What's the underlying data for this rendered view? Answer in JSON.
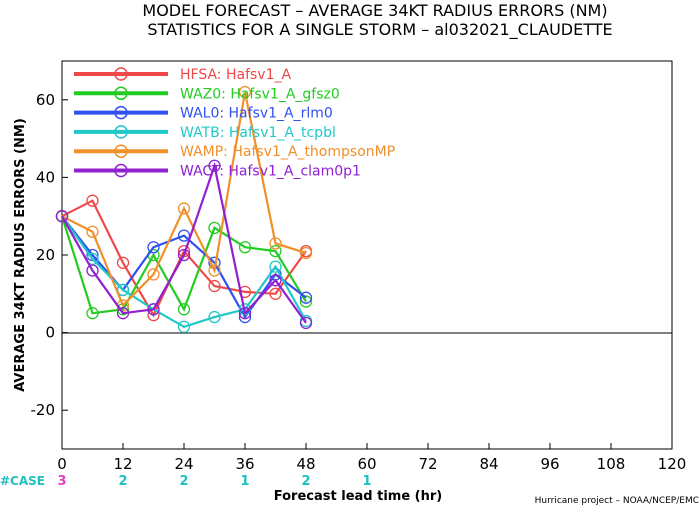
{
  "header": {
    "line1": "MODEL FORECAST – AVERAGE 34KT RADIUS ERRORS (NM)",
    "line2": "STATISTICS FOR A SINGLE STORM – al032021_CLAUDETTE"
  },
  "footer": {
    "case_label": "#CASE",
    "credit": "Hurricane project – NOAA/NCEP/EMC"
  },
  "chart_data": {
    "type": "line",
    "xlabel": "Forecast lead time (hr)",
    "ylabel": "AVERAGE 34KT RADIUS ERRORS (NM)",
    "xlim": [
      0,
      120
    ],
    "ylim": [
      -30,
      70
    ],
    "xticks": [
      0,
      12,
      24,
      36,
      48,
      60,
      72,
      84,
      96,
      108,
      120
    ],
    "yticks": [
      -20,
      0,
      20,
      40,
      60
    ],
    "grid": false,
    "legend_position": "top-left",
    "case_counts": [
      {
        "x": 0,
        "label": "3",
        "color": "#e040c0"
      },
      {
        "x": 12,
        "label": "2",
        "color": "#20c0c0"
      },
      {
        "x": 24,
        "label": "2",
        "color": "#20c0c0"
      },
      {
        "x": 36,
        "label": "1",
        "color": "#20c0c0"
      },
      {
        "x": 48,
        "label": "2",
        "color": "#20c0c0"
      },
      {
        "x": 60,
        "label": "1",
        "color": "#20c0c0"
      }
    ],
    "series": [
      {
        "name": "HFSA: Hafsv1_A",
        "color": "#f04848",
        "x": [
          0,
          6,
          12,
          18,
          24,
          30,
          36,
          42,
          48
        ],
        "y": [
          30,
          34,
          18,
          4.5,
          21,
          12,
          10.5,
          10,
          21
        ]
      },
      {
        "name": "WAZ0: Hafsv1_A_gfsz0",
        "color": "#22cc22",
        "x": [
          0,
          6,
          12,
          18,
          24,
          30,
          36,
          42,
          48
        ],
        "y": [
          30,
          5,
          6,
          20,
          6,
          27,
          22,
          21,
          8
        ]
      },
      {
        "name": "WAL0: Hafsv1_A_rlm0",
        "color": "#3050f0",
        "x": [
          0,
          6,
          12,
          18,
          24,
          30,
          36,
          42,
          48
        ],
        "y": [
          30,
          20,
          11,
          22,
          25,
          18,
          4,
          15,
          9
        ]
      },
      {
        "name": "WATB: Hafsv1_A_tcpbl",
        "color": "#20c8c8",
        "x": [
          0,
          6,
          12,
          18,
          24,
          30,
          36,
          42,
          48
        ],
        "y": [
          30,
          19,
          11,
          6,
          1.5,
          4,
          6,
          17,
          3
        ]
      },
      {
        "name": "WAMP: Hafsv1_A_thompsonMP",
        "color": "#f0902a",
        "x": [
          0,
          6,
          12,
          18,
          24,
          30,
          36,
          42,
          48
        ],
        "y": [
          30,
          26,
          7,
          15,
          32,
          16,
          62,
          23,
          20.5
        ]
      },
      {
        "name": "WACT: Hafsv1_A_clam0p1",
        "color": "#9020d0",
        "x": [
          0,
          6,
          12,
          18,
          24,
          30,
          36,
          42,
          48
        ],
        "y": [
          30,
          16,
          5,
          6,
          20,
          43,
          5,
          13.5,
          2.5
        ]
      }
    ]
  }
}
